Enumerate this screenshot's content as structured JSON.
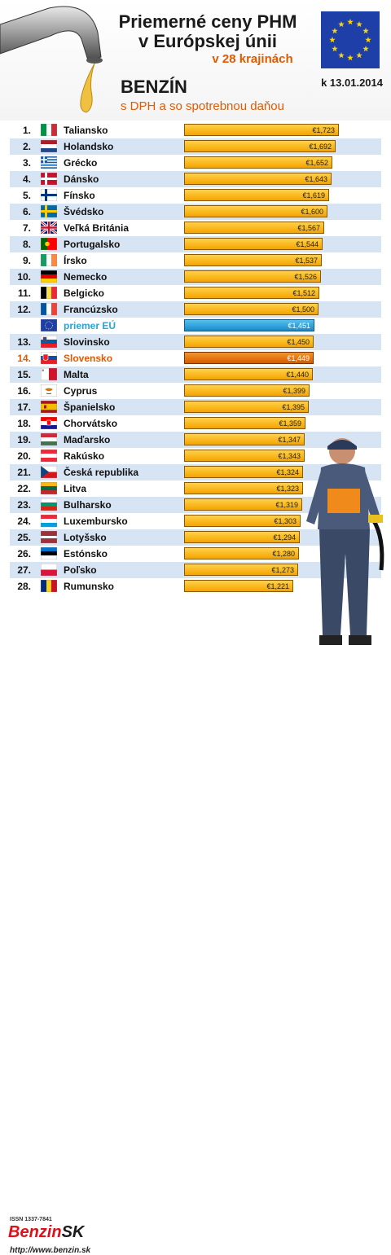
{
  "header": {
    "title_line1": "Priemerné ceny PHM",
    "title_line2": "v Európskej únii",
    "subtitle": "v 28 krajinách",
    "fuel": "BENZÍN",
    "tax_note": "s DPH a so spotrebnou daňou",
    "date": "k 13.01.2014"
  },
  "colors": {
    "bar": "#f5a300",
    "average_bar": "#1e88c8",
    "slovakia_bar": "#d45a00",
    "alt_row": "#d6e4f3",
    "accent": "#e05a00"
  },
  "chart_data": {
    "type": "bar",
    "orientation": "horizontal",
    "xlim": [
      0,
      1.8
    ],
    "currency": "€",
    "rows": [
      {
        "rank": "1.",
        "name": "Taliansko",
        "value": 1.723,
        "label": "€1,723",
        "flag": "it"
      },
      {
        "rank": "2.",
        "name": "Holandsko",
        "value": 1.692,
        "label": "€1,692",
        "flag": "nl"
      },
      {
        "rank": "3.",
        "name": "Grécko",
        "value": 1.652,
        "label": "€1,652",
        "flag": "gr"
      },
      {
        "rank": "4.",
        "name": "Dánsko",
        "value": 1.643,
        "label": "€1,643",
        "flag": "dk"
      },
      {
        "rank": "5.",
        "name": "Fínsko",
        "value": 1.619,
        "label": "€1,619",
        "flag": "fi"
      },
      {
        "rank": "6.",
        "name": "Švédsko",
        "value": 1.6,
        "label": "€1,600",
        "flag": "se"
      },
      {
        "rank": "7.",
        "name": "Veľká Británia",
        "value": 1.567,
        "label": "€1,567",
        "flag": "gb"
      },
      {
        "rank": "8.",
        "name": "Portugalsko",
        "value": 1.544,
        "label": "€1,544",
        "flag": "pt"
      },
      {
        "rank": "9.",
        "name": "Írsko",
        "value": 1.537,
        "label": "€1,537",
        "flag": "ie"
      },
      {
        "rank": "10.",
        "name": "Nemecko",
        "value": 1.526,
        "label": "€1,526",
        "flag": "de"
      },
      {
        "rank": "11.",
        "name": "Belgicko",
        "value": 1.512,
        "label": "€1,512",
        "flag": "be"
      },
      {
        "rank": "12.",
        "name": "Francúzsko",
        "value": 1.5,
        "label": "€1,500",
        "flag": "fr"
      },
      {
        "rank": "",
        "name": "priemer EÚ",
        "value": 1.451,
        "label": "€1,451",
        "flag": "eu",
        "kind": "avg"
      },
      {
        "rank": "13.",
        "name": "Slovinsko",
        "value": 1.45,
        "label": "€1,450",
        "flag": "si"
      },
      {
        "rank": "14.",
        "name": "Slovensko",
        "value": 1.449,
        "label": "€1,449",
        "flag": "sk",
        "kind": "sk"
      },
      {
        "rank": "15.",
        "name": "Malta",
        "value": 1.44,
        "label": "€1,440",
        "flag": "mt"
      },
      {
        "rank": "16.",
        "name": "Cyprus",
        "value": 1.399,
        "label": "€1,399",
        "flag": "cy"
      },
      {
        "rank": "17.",
        "name": "Španielsko",
        "value": 1.395,
        "label": "€1,395",
        "flag": "es"
      },
      {
        "rank": "18.",
        "name": "Chorvátsko",
        "value": 1.359,
        "label": "€1,359",
        "flag": "hr"
      },
      {
        "rank": "19.",
        "name": "Maďarsko",
        "value": 1.347,
        "label": "€1,347",
        "flag": "hu"
      },
      {
        "rank": "20.",
        "name": "Rakúsko",
        "value": 1.343,
        "label": "€1,343",
        "flag": "at"
      },
      {
        "rank": "21.",
        "name": "Česká republika",
        "value": 1.324,
        "label": "€1,324",
        "flag": "cz"
      },
      {
        "rank": "22.",
        "name": "Litva",
        "value": 1.323,
        "label": "€1,323",
        "flag": "lt"
      },
      {
        "rank": "23.",
        "name": "Bulharsko",
        "value": 1.319,
        "label": "€1,319",
        "flag": "bg"
      },
      {
        "rank": "24.",
        "name": "Luxembursko",
        "value": 1.303,
        "label": "€1,303",
        "flag": "lu"
      },
      {
        "rank": "25.",
        "name": "Lotyšsko",
        "value": 1.294,
        "label": "€1,294",
        "flag": "lv"
      },
      {
        "rank": "26.",
        "name": "Estónsko",
        "value": 1.28,
        "label": "€1,280",
        "flag": "ee"
      },
      {
        "rank": "27.",
        "name": "Poľsko",
        "value": 1.273,
        "label": "€1,273",
        "flag": "pl"
      },
      {
        "rank": "28.",
        "name": "Rumunsko",
        "value": 1.221,
        "label": "€1,221",
        "flag": "ro"
      }
    ]
  },
  "footer": {
    "issn": "ISSN 1337-7841",
    "brand_part1": "Benzin",
    "brand_part2": "SK",
    "url": "http://www.benzin.sk"
  }
}
